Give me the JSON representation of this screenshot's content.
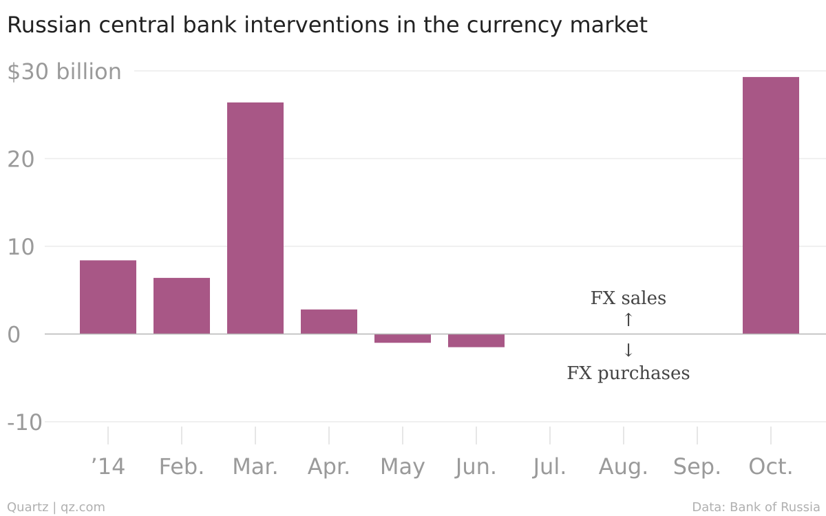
{
  "chart_data": {
    "type": "bar",
    "title": "Russian central bank interventions in the currency market",
    "categories": [
      "’14",
      "Feb.",
      "Mar.",
      "Apr.",
      "May",
      "Jun.",
      "Jul.",
      "Aug.",
      "Sep.",
      "Oct."
    ],
    "values": [
      8.4,
      6.4,
      26.4,
      2.8,
      -1.0,
      -1.5,
      0.0,
      0.0,
      0.0,
      29.3
    ],
    "ylim": [
      -10,
      30
    ],
    "y_ticks": [
      {
        "value": 30,
        "label": "$30 billion"
      },
      {
        "value": 20,
        "label": "20"
      },
      {
        "value": 10,
        "label": "10"
      },
      {
        "value": 0,
        "label": "0"
      },
      {
        "value": -10,
        "label": "-10"
      }
    ],
    "bar_color": "#a85786",
    "grid": true,
    "annotations": {
      "up_label": "FX sales",
      "up_arrow": "↑",
      "down_label": "FX purchases",
      "down_arrow": "↓"
    },
    "source": "Data: Bank of Russia",
    "credit": "Quartz | qz.com"
  }
}
